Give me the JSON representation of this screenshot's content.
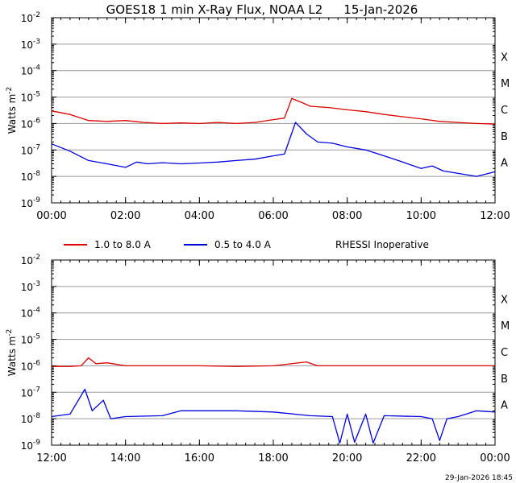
{
  "title": "GOES18 1 min X-Ray Flux, NOAA L2",
  "date": "15-Jan-2026",
  "footer_timestamp": "29-Jan-2026 18:45",
  "ylabel": "Watts m",
  "ylabel_sup": "-2",
  "y_ticks": [
    {
      "base": "10",
      "exp": "-2"
    },
    {
      "base": "10",
      "exp": "-3"
    },
    {
      "base": "10",
      "exp": "-4"
    },
    {
      "base": "10",
      "exp": "-5"
    },
    {
      "base": "10",
      "exp": "-6"
    },
    {
      "base": "10",
      "exp": "-7"
    },
    {
      "base": "10",
      "exp": "-8"
    },
    {
      "base": "10",
      "exp": "-9"
    }
  ],
  "flare_classes": [
    "X",
    "M",
    "C",
    "B",
    "A"
  ],
  "legend": {
    "long": "1.0 to 8.0 A",
    "short": "0.5 to 4.0 A",
    "note": "RHESSI Inoperative"
  },
  "colors": {
    "long": "#dd0000",
    "short": "#0000dd",
    "axis": "#000000",
    "grid": "#999999"
  },
  "chart_data": [
    {
      "type": "line",
      "log_scale": true,
      "ylim": [
        1e-09,
        0.01
      ],
      "x_unit": "hours UT, 15-Jan-2026",
      "xlim": [
        0,
        12
      ],
      "x_ticks": [
        "00:00",
        "02:00",
        "04:00",
        "06:00",
        "08:00",
        "10:00",
        "12:00"
      ],
      "grid": "horizontal at each decade",
      "series": [
        {
          "name": "1.0 to 8.0 A",
          "color": "#dd0000",
          "points": [
            [
              0,
              3e-06
            ],
            [
              0.5,
              2.2e-06
            ],
            [
              1,
              1.3e-06
            ],
            [
              1.5,
              1.2e-06
            ],
            [
              2,
              1.3e-06
            ],
            [
              2.5,
              1.1e-06
            ],
            [
              3,
              1e-06
            ],
            [
              3.5,
              1.05e-06
            ],
            [
              4,
              1e-06
            ],
            [
              4.5,
              1.1e-06
            ],
            [
              5,
              1e-06
            ],
            [
              5.5,
              1.1e-06
            ],
            [
              6,
              1.4e-06
            ],
            [
              6.3,
              1.6e-06
            ],
            [
              6.5,
              8.8e-06
            ],
            [
              6.8,
              6e-06
            ],
            [
              7,
              4.5e-06
            ],
            [
              7.5,
              4e-06
            ],
            [
              8,
              3.3e-06
            ],
            [
              8.5,
              2.8e-06
            ],
            [
              9,
              2.2e-06
            ],
            [
              9.5,
              1.8e-06
            ],
            [
              10,
              1.5e-06
            ],
            [
              10.5,
              1.2e-06
            ],
            [
              11,
              1.1e-06
            ],
            [
              11.5,
              1e-06
            ],
            [
              12,
              9.5e-07
            ]
          ]
        },
        {
          "name": "0.5 to 4.0 A",
          "color": "#0000dd",
          "points": [
            [
              0,
              1.7e-07
            ],
            [
              0.5,
              9e-08
            ],
            [
              1,
              4e-08
            ],
            [
              1.5,
              3e-08
            ],
            [
              2,
              2.2e-08
            ],
            [
              2.3,
              3.5e-08
            ],
            [
              2.6,
              3e-08
            ],
            [
              3,
              3.3e-08
            ],
            [
              3.5,
              3e-08
            ],
            [
              4,
              3.2e-08
            ],
            [
              4.5,
              3.5e-08
            ],
            [
              5,
              4e-08
            ],
            [
              5.5,
              4.5e-08
            ],
            [
              6,
              6e-08
            ],
            [
              6.3,
              7e-08
            ],
            [
              6.6,
              1.1e-06
            ],
            [
              6.9,
              4e-07
            ],
            [
              7.2,
              2e-07
            ],
            [
              7.6,
              1.8e-07
            ],
            [
              8,
              1.3e-07
            ],
            [
              8.5,
              1e-07
            ],
            [
              9,
              6e-08
            ],
            [
              9.5,
              3.5e-08
            ],
            [
              10,
              2e-08
            ],
            [
              10.3,
              2.5e-08
            ],
            [
              10.6,
              1.6e-08
            ],
            [
              11,
              1.3e-08
            ],
            [
              11.5,
              1e-08
            ],
            [
              12,
              1.5e-08
            ]
          ]
        }
      ]
    },
    {
      "type": "line",
      "log_scale": true,
      "ylim": [
        1e-09,
        0.01
      ],
      "x_unit": "hours UT, 15-Jan-2026",
      "xlim": [
        12,
        24
      ],
      "x_ticks": [
        "12:00",
        "14:00",
        "16:00",
        "18:00",
        "20:00",
        "22:00",
        "00:00"
      ],
      "grid": "horizontal at each decade",
      "series": [
        {
          "name": "1.0 to 8.0 A",
          "color": "#dd0000",
          "points": [
            [
              12,
              9.5e-07
            ],
            [
              12.5,
              9.5e-07
            ],
            [
              12.8,
              1e-06
            ],
            [
              13,
              2e-06
            ],
            [
              13.2,
              1.2e-06
            ],
            [
              13.5,
              1.3e-06
            ],
            [
              14,
              1e-06
            ],
            [
              15,
              1e-06
            ],
            [
              16,
              1e-06
            ],
            [
              17,
              9.5e-07
            ],
            [
              18,
              1e-06
            ],
            [
              18.9,
              1.4e-06
            ],
            [
              19.2,
              1e-06
            ],
            [
              20,
              1e-06
            ],
            [
              21,
              1e-06
            ],
            [
              22,
              1e-06
            ],
            [
              23,
              1e-06
            ],
            [
              24,
              1e-06
            ]
          ]
        },
        {
          "name": "0.5 to 4.0 A",
          "color": "#0000dd",
          "points": [
            [
              12,
              1.2e-08
            ],
            [
              12.5,
              1.5e-08
            ],
            [
              12.9,
              1.3e-07
            ],
            [
              13.1,
              2e-08
            ],
            [
              13.4,
              5e-08
            ],
            [
              13.6,
              1e-08
            ],
            [
              14,
              1.2e-08
            ],
            [
              15,
              1.3e-08
            ],
            [
              15.5,
              2e-08
            ],
            [
              16,
              2e-08
            ],
            [
              17,
              2e-08
            ],
            [
              18,
              1.8e-08
            ],
            [
              19,
              1.3e-08
            ],
            [
              19.6,
              1.2e-08
            ],
            [
              19.8,
              1.2e-09
            ],
            [
              20,
              1.5e-08
            ],
            [
              20.2,
              1.3e-09
            ],
            [
              20.5,
              1.5e-08
            ],
            [
              20.7,
              1.2e-09
            ],
            [
              21,
              1.3e-08
            ],
            [
              22,
              1.2e-08
            ],
            [
              22.3,
              1e-08
            ],
            [
              22.5,
              1.5e-09
            ],
            [
              22.7,
              1e-08
            ],
            [
              23,
              1.2e-08
            ],
            [
              23.5,
              2e-08
            ],
            [
              24,
              1.8e-08
            ]
          ]
        }
      ]
    }
  ]
}
